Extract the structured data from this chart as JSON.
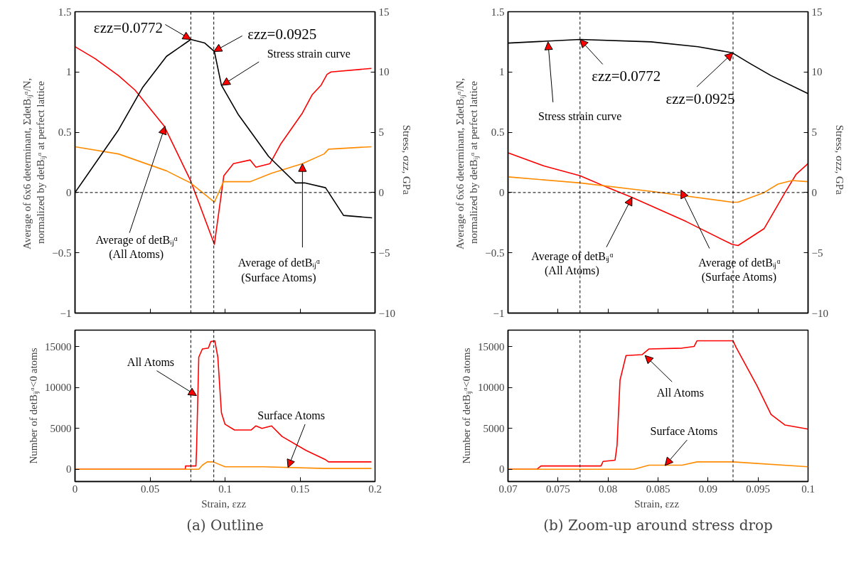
{
  "chart_data": [
    {
      "type": "line",
      "xlim": [
        0,
        0.2
      ],
      "xticks": [
        0,
        0.05,
        0.1,
        0.15,
        0.2
      ],
      "ylim": [
        -1,
        1.5
      ],
      "yticks": [
        -1,
        -0.5,
        0,
        0.5,
        1,
        1.5
      ],
      "y2lim": [
        -10,
        15
      ],
      "y2ticks": [
        -10,
        -5,
        0,
        5,
        10,
        15
      ],
      "tick_labels": "y",
      "ylabel": "Average of 6x6 determinant,  ΣdetBᵢⱼᵅ/N,\nnormalized by detBᵢⱼᵅ at perfect lattice",
      "y2label": "Stress,  σzz,  GPa",
      "series": [
        {
          "color": "#ff0000",
          "x": [
            0,
            0.0135,
            0.029,
            0.04,
            0.0595,
            0.077,
            0.0929,
            0.0992,
            0.1056,
            0.1167,
            0.1206,
            0.13,
            0.137,
            0.1516,
            0.158,
            0.164,
            0.168,
            0.1706,
            0.1976
          ],
          "values": [
            1.21,
            1.11,
            0.97,
            0.85,
            0.55,
            0.1,
            -0.43,
            0.14,
            0.24,
            0.27,
            0.21,
            0.24,
            0.4,
            0.66,
            0.81,
            0.89,
            0.98,
            1.0,
            1.03
          ]
        },
        {
          "color": "#ff8c00",
          "x": [
            0,
            0.029,
            0.061,
            0.077,
            0.0929,
            0.099,
            0.1167,
            0.131,
            0.1516,
            0.166,
            0.169,
            0.1976
          ],
          "values": [
            0.38,
            0.32,
            0.18,
            0.08,
            -0.08,
            0.09,
            0.09,
            0.16,
            0.24,
            0.32,
            0.36,
            0.38
          ]
        },
        {
          "color": "#000000",
          "axis": "y2",
          "x": [
            0,
            0.029,
            0.045,
            0.061,
            0.0772,
            0.0865,
            0.0929,
            0.0976,
            0.1087,
            0.129,
            0.147,
            0.153,
            0.167,
            0.179,
            0.198
          ],
          "values": [
            0,
            5.2,
            8.7,
            11.3,
            12.7,
            12.4,
            11.7,
            8.9,
            6.5,
            3.0,
            0.8,
            0.8,
            0.4,
            -1.9,
            -2.1
          ]
        }
      ],
      "ref_lines": [
        {
          "axis": "x",
          "value": 0.0772,
          "color": "#000000",
          "line_style": "dashed"
        },
        {
          "axis": "x",
          "value": 0.0925,
          "color": "#000000",
          "line_style": "dashed"
        },
        {
          "axis": "y",
          "value": 0,
          "color": "#000000",
          "line_style": "dashed"
        }
      ],
      "annotations": [
        {
          "text": "εzz=0.0772",
          "x": 0.0772,
          "y": 1.27
        },
        {
          "text": "εzz=0.0925",
          "x": 0.0925,
          "y": 1.17
        },
        {
          "text": "Stress strain curve",
          "x": 0.098,
          "y": 0.89
        },
        {
          "text": "Average of detBᵢⱼᵅ\n(All Atoms)",
          "x": 0.06,
          "y": 0.55
        },
        {
          "text": "Average of detBᵢⱼᵅ\n(Surface Atoms)",
          "x": 0.1516,
          "y": 0.24
        }
      ]
    },
    {
      "type": "line",
      "xlim": [
        0,
        0.2
      ],
      "xticks": [
        0,
        0.05,
        0.1,
        0.15,
        0.2
      ],
      "ylim": [
        -1500,
        17000
      ],
      "yticks": [
        0,
        5000,
        10000,
        15000
      ],
      "xlabel": "Strain,  εzz",
      "ylabel": "Number of detBᵢⱼᵅ<0 atoms",
      "series": [
        {
          "color": "#ff0000",
          "x": [
            0,
            0.0735,
            0.0737,
            0.0806,
            0.081,
            0.0825,
            0.0849,
            0.0889,
            0.0905,
            0.0932,
            0.0952,
            0.0976,
            0.1,
            0.1063,
            0.1175,
            0.1206,
            0.1246,
            0.131,
            0.138,
            0.154,
            0.1667,
            0.169,
            0.1976
          ],
          "values": [
            0,
            0,
            400,
            400,
            2300,
            13700,
            14700,
            14800,
            15600,
            15700,
            13700,
            6900,
            5500,
            4800,
            4800,
            5300,
            5000,
            5300,
            4000,
            2300,
            1200,
            900,
            900
          ]
        },
        {
          "color": "#ff8c00",
          "x": [
            0,
            0.0825,
            0.0849,
            0.0881,
            0.0921,
            0.1,
            0.1254,
            0.1667,
            0.1976
          ],
          "values": [
            0,
            0,
            500,
            900,
            900,
            300,
            300,
            100,
            100
          ]
        }
      ],
      "ref_lines": [
        {
          "axis": "x",
          "value": 0.0772,
          "color": "#000000",
          "line_style": "dashed"
        },
        {
          "axis": "x",
          "value": 0.0925,
          "color": "#000000",
          "line_style": "dashed"
        }
      ],
      "annotations": [
        {
          "text": "All Atoms",
          "x": 0.081,
          "y": 9000
        },
        {
          "text": "Surface Atoms",
          "x": 0.142,
          "y": 200
        },
        "(a) Outline"
      ]
    },
    {
      "type": "line",
      "xlim": [
        0.07,
        0.1
      ],
      "xticks": [
        0.07,
        0.075,
        0.08,
        0.085,
        0.09,
        0.095,
        0.1
      ],
      "ylim": [
        -1,
        1.5
      ],
      "yticks": [
        -1,
        -0.5,
        0,
        0.5,
        1,
        1.5
      ],
      "y2lim": [
        -10,
        15
      ],
      "y2ticks": [
        -10,
        -5,
        0,
        5,
        10,
        15
      ],
      "tick_labels": "y",
      "ylabel": "Average of 6x6 determinant,  ΣdetBᵢⱼᵅ/N,\nnormalized by detBᵢⱼᵅ at perfect lattice",
      "y2label": "Stress,  σzz,  GPa",
      "series": [
        {
          "color": "#ff0000",
          "x": [
            0.07,
            0.0736,
            0.0772,
            0.08,
            0.0824,
            0.0878,
            0.0924,
            0.093,
            0.0956,
            0.0977,
            0.0988,
            0.1
          ],
          "values": [
            0.33,
            0.22,
            0.14,
            0.04,
            -0.04,
            -0.24,
            -0.43,
            -0.44,
            -0.3,
            0,
            0.15,
            0.24
          ]
        },
        {
          "color": "#ff8c00",
          "x": [
            0.07,
            0.0772,
            0.0843,
            0.0924,
            0.093,
            0.0956,
            0.097,
            0.0984,
            0.1
          ],
          "values": [
            0.13,
            0.08,
            0.01,
            -0.08,
            -0.08,
            0,
            0.07,
            0.1,
            0.09
          ]
        },
        {
          "color": "#000000",
          "axis": "y2",
          "x": [
            0.07,
            0.0772,
            0.0843,
            0.089,
            0.0924,
            0.0942,
            0.0963,
            0.1
          ],
          "values": [
            12.4,
            12.7,
            12.5,
            12.1,
            11.6,
            10.7,
            9.7,
            8.2
          ]
        }
      ],
      "ref_lines": [
        {
          "axis": "x",
          "value": 0.0772,
          "color": "#000000",
          "line_style": "dashed"
        },
        {
          "axis": "x",
          "value": 0.0925,
          "color": "#000000",
          "line_style": "dashed"
        },
        {
          "axis": "y",
          "value": 0,
          "color": "#000000",
          "line_style": "dashed"
        }
      ],
      "annotations": [
        {
          "text": "Stress strain curve",
          "x": 0.074,
          "y": 1.25
        },
        {
          "text": "εzz=0.0772",
          "x": 0.0772,
          "y": 1.27
        },
        {
          "text": "εzz=0.0925",
          "x": 0.0925,
          "y": 1.16
        },
        {
          "text": "Average of detBᵢⱼᵅ\n(All Atoms)",
          "x": 0.0824,
          "y": -0.04
        },
        {
          "text": "Average of detBᵢⱼᵅ\n(Surface Atoms)",
          "x": 0.0873,
          "y": 0.02
        }
      ]
    },
    {
      "type": "line",
      "xlim": [
        0.07,
        0.1
      ],
      "xticks": [
        0.07,
        0.075,
        0.08,
        0.085,
        0.09,
        0.095,
        0.1
      ],
      "ylim": [
        -1500,
        17000
      ],
      "yticks": [
        0,
        5000,
        10000,
        15000
      ],
      "xlabel": "Strain,  εzz",
      "ylabel": "Number of detBᵢⱼᵅ<0 atoms",
      "series": [
        {
          "color": "#ff0000",
          "x": [
            0.07,
            0.0729,
            0.0733,
            0.0793,
            0.0795,
            0.0807,
            0.0809,
            0.0812,
            0.0818,
            0.0834,
            0.0841,
            0.0874,
            0.0886,
            0.0889,
            0.0925,
            0.0928,
            0.0949,
            0.0963,
            0.0977,
            0.1
          ],
          "values": [
            0,
            0,
            400,
            400,
            950,
            1100,
            2900,
            10900,
            13900,
            14000,
            14700,
            14800,
            15000,
            15700,
            15700,
            14900,
            10200,
            6700,
            5400,
            4900
          ]
        },
        {
          "color": "#ff8c00",
          "x": [
            0.07,
            0.0826,
            0.0841,
            0.0874,
            0.0889,
            0.0925,
            0.1
          ],
          "values": [
            0,
            0,
            500,
            500,
            900,
            900,
            300
          ]
        }
      ],
      "ref_lines": [
        {
          "axis": "x",
          "value": 0.0772,
          "color": "#000000",
          "line_style": "dashed"
        },
        {
          "axis": "x",
          "value": 0.0925,
          "color": "#000000",
          "line_style": "dashed"
        }
      ],
      "annotations": [
        {
          "text": "All Atoms",
          "x": 0.0837,
          "y": 13900
        },
        {
          "text": "Surface Atoms",
          "x": 0.0857,
          "y": 450
        },
        "(b) Zoom-up around stress drop"
      ]
    }
  ]
}
